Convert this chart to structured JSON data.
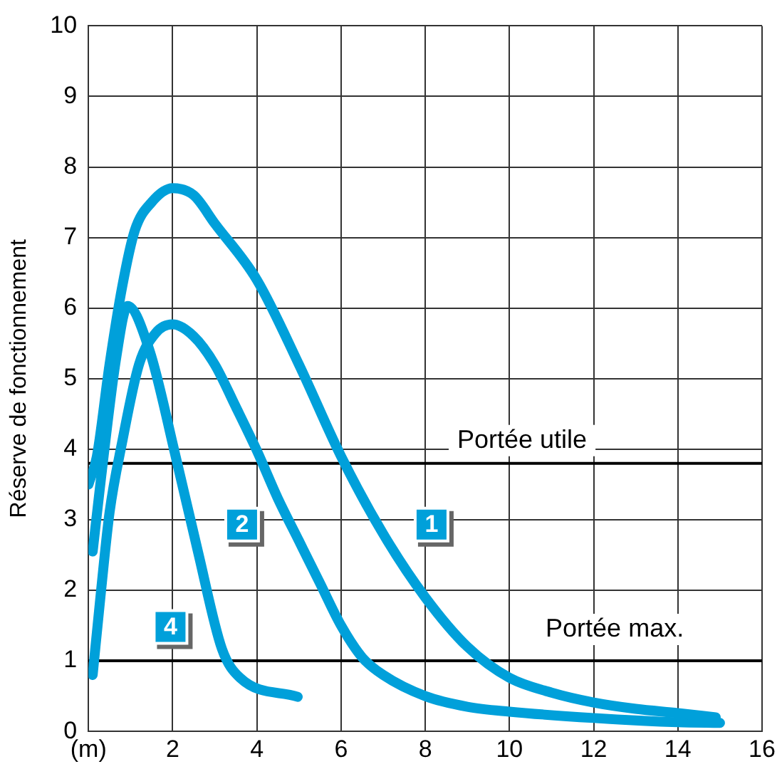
{
  "chart_data": {
    "type": "line",
    "ylabel": "Réserve de fonctionnement",
    "xlim": [
      0,
      16
    ],
    "xticks": [
      {
        "value": 0,
        "label": "(m)"
      },
      2,
      4,
      6,
      8,
      10,
      12,
      14,
      16
    ],
    "ylim": [
      0,
      10
    ],
    "yticks": [
      0,
      1,
      2,
      3,
      4,
      5,
      6,
      7,
      8,
      9,
      10
    ],
    "grid": true,
    "legend": false,
    "marker": "none",
    "line_style": "solid",
    "series": [
      {
        "name": "1",
        "color": "#00a0da",
        "x": [
          0,
          0.2,
          0.5,
          0.8,
          1.1,
          1.5,
          2,
          2.5,
          3,
          4,
          5,
          6,
          7,
          8,
          9,
          10,
          11,
          12,
          13,
          14,
          14.9
        ],
        "values": [
          3.5,
          3.9,
          5.2,
          6.3,
          7.1,
          7.5,
          7.7,
          7.6,
          7.2,
          6.4,
          5.2,
          3.9,
          2.8,
          1.9,
          1.2,
          0.76,
          0.55,
          0.41,
          0.32,
          0.26,
          0.2
        ]
      },
      {
        "name": "2",
        "color": "#00a0da",
        "x": [
          0.1,
          0.3,
          0.5,
          0.8,
          1.2,
          1.6,
          2,
          2.5,
          3,
          3.5,
          4,
          4.5,
          5,
          5.5,
          6,
          6.5,
          7,
          8,
          9,
          10,
          12,
          14,
          15
        ],
        "values": [
          0.8,
          2.0,
          3.1,
          4.1,
          5.2,
          5.65,
          5.77,
          5.6,
          5.2,
          4.6,
          3.98,
          3.3,
          2.7,
          2.1,
          1.5,
          1.05,
          0.8,
          0.5,
          0.35,
          0.28,
          0.19,
          0.13,
          0.12
        ]
      },
      {
        "name": "4",
        "color": "#00a0da",
        "x": [
          0.1,
          0.3,
          0.66,
          0.93,
          1.45,
          2.07,
          2.6,
          3.17,
          3.6,
          4.97
        ],
        "values": [
          2.55,
          3.6,
          5.3,
          6.03,
          5.4,
          3.9,
          2.55,
          1.17,
          0.76,
          0.49
        ]
      }
    ],
    "ref_lines": [
      {
        "axis": "y",
        "value": 3.8,
        "label": "Portée utile",
        "color": "#000000"
      },
      {
        "axis": "y",
        "value": 1,
        "label": "Portée max.",
        "color": "#000000"
      }
    ]
  }
}
